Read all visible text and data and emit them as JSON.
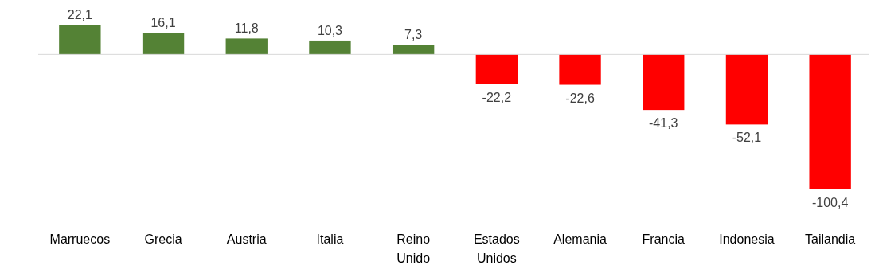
{
  "chart_data": {
    "type": "bar",
    "categories": [
      "Marruecos",
      "Grecia",
      "Austria",
      "Italia",
      "Reino Unido",
      "Estados Unidos",
      "Alemania",
      "Francia",
      "Indonesia",
      "Tailandia"
    ],
    "values": [
      22.1,
      16.1,
      11.8,
      10.3,
      7.3,
      -22.2,
      -22.6,
      -41.3,
      -52.1,
      -100.4
    ],
    "value_labels": [
      "22,1",
      "16,1",
      "11,8",
      "10,3",
      "7,3",
      "-22,2",
      "-22,6",
      "-41,3",
      "-52,1",
      "-100,4"
    ],
    "colors": [
      "#548235",
      "#548235",
      "#548235",
      "#548235",
      "#548235",
      "#ff0000",
      "#ff0000",
      "#ff0000",
      "#ff0000",
      "#ff0000"
    ]
  }
}
